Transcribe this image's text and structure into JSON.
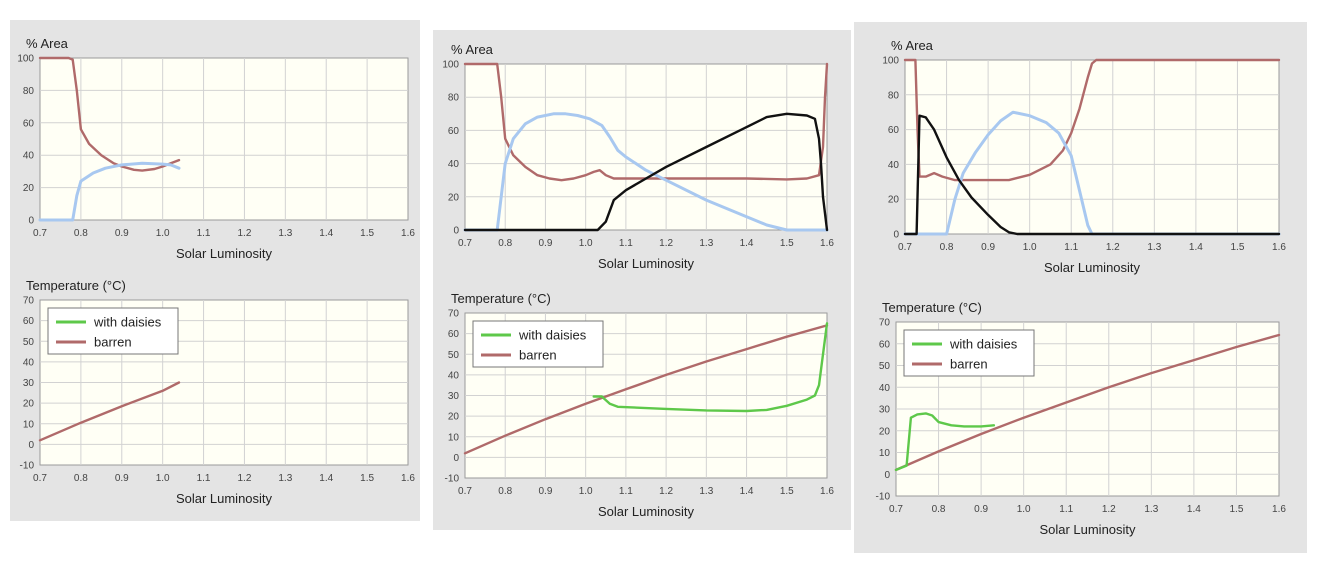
{
  "chart_data": [
    {
      "type": "line",
      "ylabel": "% Area",
      "xlabel": "Solar Luminosity",
      "xlim": [
        0.7,
        1.6
      ],
      "ylim": [
        0,
        100
      ],
      "xticks": [
        "0.7",
        "0.8",
        "0.9",
        "1.0",
        "1.1",
        "1.2",
        "1.3",
        "1.4",
        "1.5",
        "1.6"
      ],
      "yticks": [
        "0",
        "20",
        "40",
        "60",
        "80",
        "100"
      ],
      "series": [
        {
          "color": "#b06a6a",
          "points": [
            [
              0.7,
              100
            ],
            [
              0.77,
              100
            ],
            [
              0.78,
              99
            ],
            [
              0.79,
              80
            ],
            [
              0.8,
              56
            ],
            [
              0.82,
              47
            ],
            [
              0.85,
              40
            ],
            [
              0.88,
              35
            ],
            [
              0.9,
              33
            ],
            [
              0.93,
              31
            ],
            [
              0.95,
              30.5
            ],
            [
              0.98,
              31.5
            ],
            [
              1.0,
              33
            ],
            [
              1.02,
              35
            ],
            [
              1.04,
              37
            ]
          ]
        },
        {
          "color": "#a8c8f0",
          "points": [
            [
              0.7,
              0
            ],
            [
              0.78,
              0
            ],
            [
              0.79,
              15
            ],
            [
              0.8,
              24
            ],
            [
              0.83,
              29
            ],
            [
              0.86,
              32
            ],
            [
              0.9,
              34
            ],
            [
              0.95,
              35
            ],
            [
              1.0,
              34.5
            ],
            [
              1.02,
              34
            ],
            [
              1.04,
              32
            ]
          ]
        }
      ]
    },
    {
      "type": "line",
      "ylabel": "Temperature (°C)",
      "xlabel": "Solar Luminosity",
      "xlim": [
        0.7,
        1.6
      ],
      "ylim": [
        -10,
        70
      ],
      "xticks": [
        "0.7",
        "0.8",
        "0.9",
        "1.0",
        "1.1",
        "1.2",
        "1.3",
        "1.4",
        "1.5",
        "1.6"
      ],
      "yticks": [
        "-10",
        "0",
        "10",
        "20",
        "30",
        "40",
        "50",
        "60",
        "70"
      ],
      "legend": [
        {
          "label": "with daisies",
          "color": "#5ec84a"
        },
        {
          "label": "barren",
          "color": "#b06a6a"
        }
      ],
      "series": [
        {
          "color": "#b06a6a",
          "points": [
            [
              0.7,
              2
            ],
            [
              0.8,
              10.5
            ],
            [
              0.9,
              18.5
            ],
            [
              1.0,
              26
            ],
            [
              1.04,
              30
            ]
          ]
        }
      ]
    },
    {
      "type": "line",
      "ylabel": "% Area",
      "xlabel": "Solar Luminosity",
      "xlim": [
        0.7,
        1.6
      ],
      "ylim": [
        0,
        100
      ],
      "xticks": [
        "0.7",
        "0.8",
        "0.9",
        "1.0",
        "1.1",
        "1.2",
        "1.3",
        "1.4",
        "1.5",
        "1.6"
      ],
      "yticks": [
        "0",
        "20",
        "40",
        "60",
        "80",
        "100"
      ],
      "series": [
        {
          "color": "#b06a6a",
          "points": [
            [
              0.7,
              100
            ],
            [
              0.78,
              100
            ],
            [
              0.79,
              80
            ],
            [
              0.8,
              55
            ],
            [
              0.82,
              45
            ],
            [
              0.85,
              38
            ],
            [
              0.88,
              33
            ],
            [
              0.91,
              31
            ],
            [
              0.94,
              30
            ],
            [
              0.97,
              31
            ],
            [
              1.0,
              33
            ],
            [
              1.02,
              35
            ],
            [
              1.035,
              36
            ],
            [
              1.05,
              33
            ],
            [
              1.07,
              31
            ],
            [
              1.1,
              31
            ],
            [
              1.2,
              31
            ],
            [
              1.3,
              31
            ],
            [
              1.4,
              31
            ],
            [
              1.5,
              30.5
            ],
            [
              1.55,
              31
            ],
            [
              1.58,
              33
            ],
            [
              1.59,
              50
            ],
            [
              1.595,
              80
            ],
            [
              1.6,
              100
            ]
          ]
        },
        {
          "color": "#a8c8f0",
          "points": [
            [
              0.7,
              0
            ],
            [
              0.78,
              0
            ],
            [
              0.79,
              20
            ],
            [
              0.8,
              40
            ],
            [
              0.82,
              55
            ],
            [
              0.85,
              64
            ],
            [
              0.88,
              68
            ],
            [
              0.92,
              70
            ],
            [
              0.95,
              70
            ],
            [
              0.98,
              69
            ],
            [
              1.01,
              67
            ],
            [
              1.04,
              63
            ],
            [
              1.06,
              56
            ],
            [
              1.08,
              48
            ],
            [
              1.1,
              44
            ],
            [
              1.15,
              36
            ],
            [
              1.2,
              30
            ],
            [
              1.3,
              18
            ],
            [
              1.4,
              8
            ],
            [
              1.45,
              3
            ],
            [
              1.5,
              0
            ],
            [
              1.6,
              0
            ]
          ]
        },
        {
          "color": "#111111",
          "points": [
            [
              0.7,
              0
            ],
            [
              1.03,
              0
            ],
            [
              1.05,
              5
            ],
            [
              1.07,
              18
            ],
            [
              1.1,
              24
            ],
            [
              1.15,
              31
            ],
            [
              1.2,
              38
            ],
            [
              1.3,
              50
            ],
            [
              1.4,
              62
            ],
            [
              1.45,
              68
            ],
            [
              1.5,
              70
            ],
            [
              1.55,
              69
            ],
            [
              1.57,
              67
            ],
            [
              1.58,
              55
            ],
            [
              1.585,
              40
            ],
            [
              1.59,
              20
            ],
            [
              1.6,
              0
            ]
          ]
        }
      ]
    },
    {
      "type": "line",
      "ylabel": "Temperature (°C)",
      "xlabel": "Solar Luminosity",
      "xlim": [
        0.7,
        1.6
      ],
      "ylim": [
        -10,
        70
      ],
      "xticks": [
        "0.7",
        "0.8",
        "0.9",
        "1.0",
        "1.1",
        "1.2",
        "1.3",
        "1.4",
        "1.5",
        "1.6"
      ],
      "yticks": [
        "-10",
        "0",
        "10",
        "20",
        "30",
        "40",
        "50",
        "60",
        "70"
      ],
      "legend": [
        {
          "label": "with daisies",
          "color": "#5ec84a"
        },
        {
          "label": "barren",
          "color": "#b06a6a"
        }
      ],
      "series": [
        {
          "color": "#b06a6a",
          "points": [
            [
              0.7,
              2
            ],
            [
              0.8,
              10.5
            ],
            [
              0.9,
              18.5
            ],
            [
              1.0,
              26
            ],
            [
              1.1,
              33
            ],
            [
              1.2,
              40
            ],
            [
              1.3,
              46.5
            ],
            [
              1.4,
              52.5
            ],
            [
              1.5,
              58.5
            ],
            [
              1.6,
              64
            ]
          ]
        },
        {
          "color": "#5ec84a",
          "points": [
            [
              1.02,
              29.5
            ],
            [
              1.04,
              29.5
            ],
            [
              1.06,
              26
            ],
            [
              1.08,
              24.5
            ],
            [
              1.2,
              23.5
            ],
            [
              1.3,
              22.8
            ],
            [
              1.4,
              22.5
            ],
            [
              1.45,
              23
            ],
            [
              1.5,
              25
            ],
            [
              1.55,
              28
            ],
            [
              1.57,
              30
            ],
            [
              1.58,
              35
            ],
            [
              1.59,
              50
            ],
            [
              1.6,
              65
            ]
          ]
        }
      ]
    },
    {
      "type": "line",
      "ylabel": "% Area",
      "xlabel": "Solar Luminosity",
      "xlim": [
        0.7,
        1.6
      ],
      "ylim": [
        0,
        100
      ],
      "xticks": [
        "0.7",
        "0.8",
        "0.9",
        "1.0",
        "1.1",
        "1.2",
        "1.3",
        "1.4",
        "1.5",
        "1.6"
      ],
      "yticks": [
        "0",
        "20",
        "40",
        "60",
        "80",
        "100"
      ],
      "series": [
        {
          "color": "#b06a6a",
          "points": [
            [
              0.7,
              100
            ],
            [
              0.725,
              100
            ],
            [
              0.73,
              60
            ],
            [
              0.735,
              33
            ],
            [
              0.75,
              33
            ],
            [
              0.77,
              35
            ],
            [
              0.79,
              33
            ],
            [
              0.82,
              31
            ],
            [
              0.9,
              31
            ],
            [
              0.95,
              31
            ],
            [
              1.0,
              34
            ],
            [
              1.05,
              40
            ],
            [
              1.08,
              48
            ],
            [
              1.1,
              58
            ],
            [
              1.12,
              72
            ],
            [
              1.14,
              90
            ],
            [
              1.15,
              98
            ],
            [
              1.16,
              100
            ],
            [
              1.6,
              100
            ]
          ]
        },
        {
          "color": "#a8c8f0",
          "points": [
            [
              0.7,
              0
            ],
            [
              0.8,
              0
            ],
            [
              0.82,
              20
            ],
            [
              0.84,
              35
            ],
            [
              0.87,
              47
            ],
            [
              0.9,
              57
            ],
            [
              0.93,
              65
            ],
            [
              0.96,
              70
            ],
            [
              1.0,
              68
            ],
            [
              1.04,
              64
            ],
            [
              1.07,
              58
            ],
            [
              1.1,
              45
            ],
            [
              1.12,
              25
            ],
            [
              1.14,
              5
            ],
            [
              1.15,
              0
            ],
            [
              1.6,
              0
            ]
          ]
        },
        {
          "color": "#111111",
          "points": [
            [
              0.7,
              0
            ],
            [
              0.728,
              0
            ],
            [
              0.735,
              68
            ],
            [
              0.75,
              67
            ],
            [
              0.77,
              60
            ],
            [
              0.8,
              44
            ],
            [
              0.83,
              31
            ],
            [
              0.86,
              21
            ],
            [
              0.9,
              11
            ],
            [
              0.93,
              4
            ],
            [
              0.95,
              1
            ],
            [
              0.97,
              0
            ],
            [
              1.6,
              0
            ]
          ]
        }
      ]
    },
    {
      "type": "line",
      "ylabel": "Temperature (°C)",
      "xlabel": "Solar Luminosity",
      "xlim": [
        0.7,
        1.6
      ],
      "ylim": [
        -10,
        70
      ],
      "xticks": [
        "0.7",
        "0.8",
        "0.9",
        "1.0",
        "1.1",
        "1.2",
        "1.3",
        "1.4",
        "1.5",
        "1.6"
      ],
      "yticks": [
        "-10",
        "0",
        "10",
        "20",
        "30",
        "40",
        "50",
        "60",
        "70"
      ],
      "legend": [
        {
          "label": "with daisies",
          "color": "#5ec84a"
        },
        {
          "label": "barren",
          "color": "#b06a6a"
        }
      ],
      "series": [
        {
          "color": "#b06a6a",
          "points": [
            [
              0.7,
              2
            ],
            [
              0.8,
              10.5
            ],
            [
              0.9,
              18.5
            ],
            [
              1.0,
              26
            ],
            [
              1.1,
              33
            ],
            [
              1.2,
              40
            ],
            [
              1.3,
              46.5
            ],
            [
              1.4,
              52.5
            ],
            [
              1.5,
              58.5
            ],
            [
              1.6,
              64
            ]
          ]
        },
        {
          "color": "#5ec84a",
          "points": [
            [
              0.7,
              2
            ],
            [
              0.725,
              4
            ],
            [
              0.735,
              26
            ],
            [
              0.75,
              27.5
            ],
            [
              0.77,
              28
            ],
            [
              0.785,
              27
            ],
            [
              0.8,
              24
            ],
            [
              0.83,
              22.5
            ],
            [
              0.86,
              22
            ],
            [
              0.9,
              22
            ],
            [
              0.93,
              22.5
            ]
          ]
        }
      ]
    }
  ]
}
